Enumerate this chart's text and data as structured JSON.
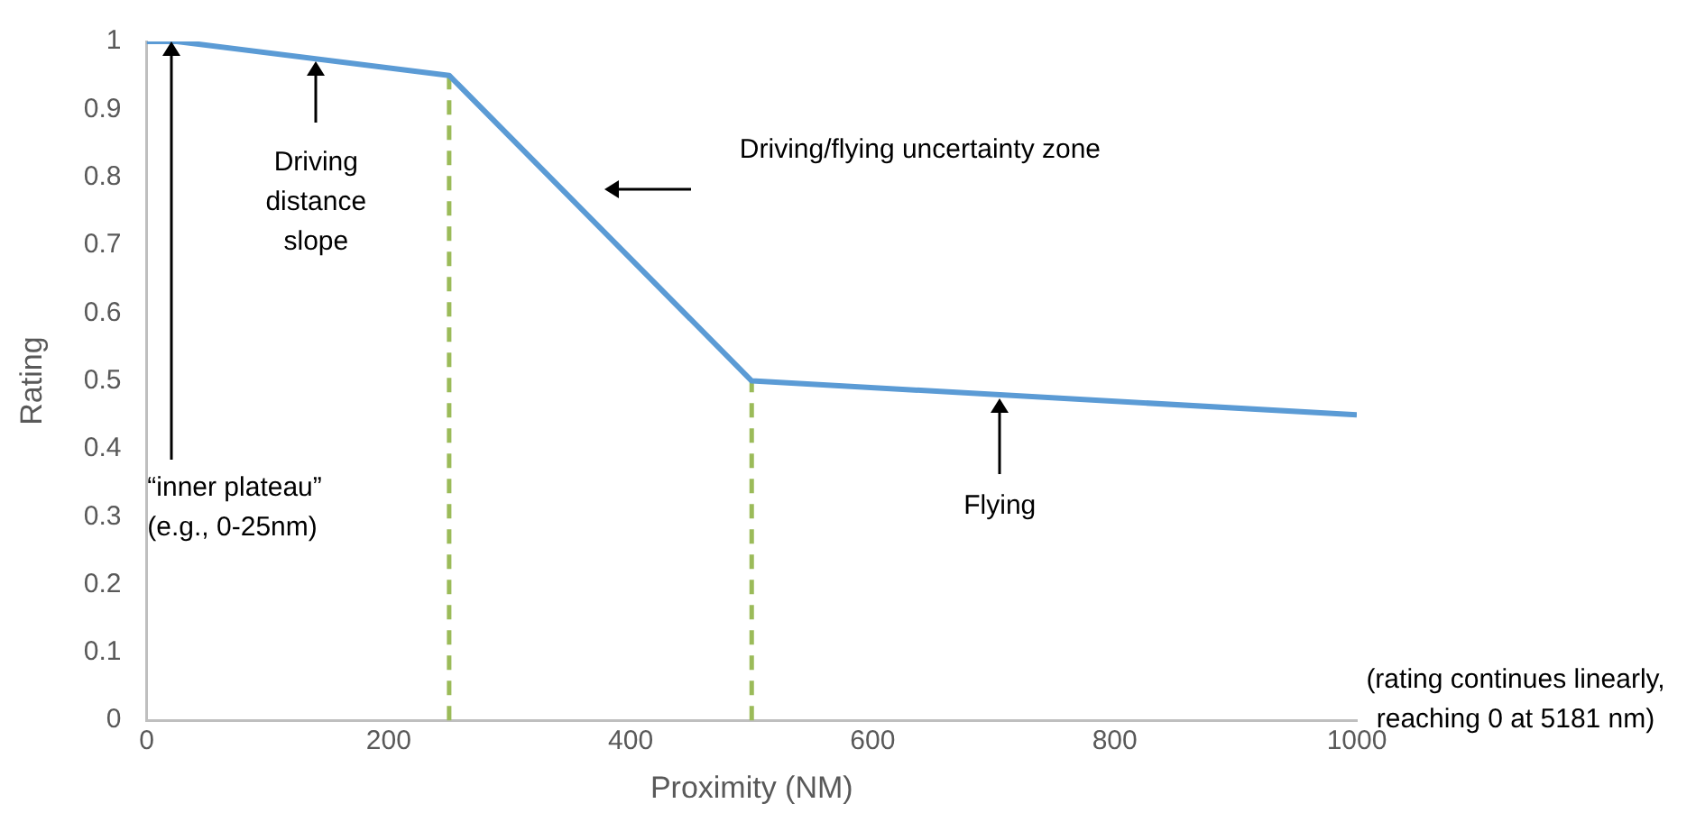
{
  "chart_data": {
    "type": "line",
    "xlabel": "Proximity (NM)",
    "ylabel": "Rating",
    "x": [
      0,
      25,
      250,
      500,
      1000
    ],
    "series": [
      {
        "color": "#5b9bd5",
        "values": [
          1,
          1,
          0.95,
          0.5,
          0.45
        ]
      }
    ],
    "xlim": [
      0,
      1000
    ],
    "xticks": [
      0,
      200,
      400,
      600,
      800,
      1000
    ],
    "ylim": [
      0,
      1
    ],
    "yticks": [
      0,
      0.1,
      0.2,
      0.3,
      0.4,
      0.5,
      0.6,
      0.7,
      0.8,
      0.9,
      1
    ],
    "grid": false,
    "legend": false,
    "marker": "none",
    "line_style": "solid",
    "ref_lines": [
      {
        "axis": "x",
        "value": 250,
        "color": "#9bbb59",
        "line_style": "dashed"
      },
      {
        "axis": "x",
        "value": 500,
        "color": "#9bbb59",
        "line_style": "dashed"
      }
    ],
    "annotations": [
      {
        "text": "“inner plateau”\n(e.g., 0-25nm)",
        "x": 20,
        "y": 1
      },
      {
        "text": "Driving\ndistance\nslope",
        "x": 140,
        "y": 0.97
      },
      "Driving/flying uncertainty zone",
      {
        "text": "Flying",
        "x": 705,
        "y": 0.475
      },
      "(rating continues linearly,\nreaching 0 at 5181 nm)"
    ]
  }
}
